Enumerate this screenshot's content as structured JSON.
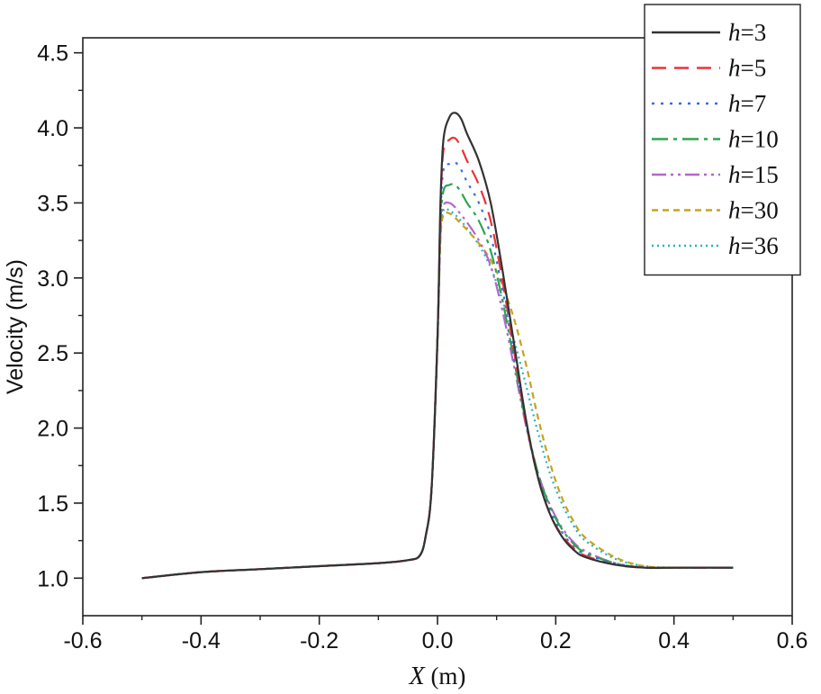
{
  "chart_data": {
    "type": "line",
    "title": "",
    "xlabel_var": "X",
    "xlabel_unit": " (m)",
    "ylabel": "Velocity (m/s)",
    "xlim": [
      -0.6,
      0.6
    ],
    "ylim": [
      0.75,
      4.6
    ],
    "x_ticks": [
      -0.6,
      -0.4,
      -0.2,
      0.0,
      0.2,
      0.4,
      0.6
    ],
    "x_tick_labels": [
      "-0.6",
      "-0.4",
      "-0.2",
      "0.0",
      "0.2",
      "0.4",
      "0.6"
    ],
    "y_ticks": [
      1.0,
      1.5,
      2.0,
      2.5,
      3.0,
      3.5,
      4.0,
      4.5
    ],
    "y_tick_labels": [
      "1.0",
      "1.5",
      "2.0",
      "2.5",
      "3.0",
      "3.5",
      "4.0",
      "4.5"
    ],
    "grid": false,
    "legend_position": "top-right",
    "series": [
      {
        "name": "h=3",
        "name_var": "h",
        "name_val": "=3",
        "color": "#333333",
        "dash": "",
        "x": [
          -0.5,
          -0.4,
          -0.3,
          -0.2,
          -0.1,
          -0.05,
          -0.03,
          -0.02,
          -0.01,
          0.0,
          0.005,
          0.01,
          0.02,
          0.03,
          0.04,
          0.05,
          0.07,
          0.09,
          0.11,
          0.13,
          0.15,
          0.17,
          0.19,
          0.21,
          0.23,
          0.25,
          0.3,
          0.35,
          0.4,
          0.45,
          0.5
        ],
        "values": [
          1.0,
          1.04,
          1.06,
          1.08,
          1.1,
          1.12,
          1.15,
          1.28,
          1.6,
          2.6,
          3.5,
          3.92,
          4.07,
          4.1,
          4.06,
          3.96,
          3.78,
          3.5,
          3.05,
          2.55,
          2.05,
          1.67,
          1.43,
          1.28,
          1.19,
          1.14,
          1.09,
          1.07,
          1.07,
          1.07,
          1.07
        ]
      },
      {
        "name": "h=5",
        "name_var": "h",
        "name_val": "=5",
        "color": "#e8333a",
        "dash": "16,9",
        "x": [
          -0.5,
          -0.4,
          -0.3,
          -0.2,
          -0.1,
          -0.05,
          -0.03,
          -0.02,
          -0.01,
          0.0,
          0.005,
          0.01,
          0.02,
          0.03,
          0.04,
          0.05,
          0.07,
          0.09,
          0.11,
          0.13,
          0.15,
          0.17,
          0.19,
          0.21,
          0.23,
          0.25,
          0.3,
          0.35,
          0.4,
          0.45,
          0.5
        ],
        "values": [
          1.0,
          1.04,
          1.06,
          1.08,
          1.1,
          1.12,
          1.15,
          1.28,
          1.6,
          2.6,
          3.45,
          3.85,
          3.92,
          3.93,
          3.87,
          3.78,
          3.62,
          3.38,
          2.98,
          2.5,
          2.03,
          1.67,
          1.43,
          1.29,
          1.2,
          1.15,
          1.09,
          1.07,
          1.07,
          1.07,
          1.07
        ]
      },
      {
        "name": "h=7",
        "name_var": "h",
        "name_val": "=7",
        "color": "#3a6fd8",
        "dash": "3,7",
        "x": [
          -0.5,
          -0.4,
          -0.3,
          -0.2,
          -0.1,
          -0.05,
          -0.03,
          -0.02,
          -0.01,
          0.0,
          0.005,
          0.01,
          0.02,
          0.03,
          0.04,
          0.05,
          0.07,
          0.09,
          0.11,
          0.13,
          0.15,
          0.17,
          0.19,
          0.21,
          0.23,
          0.25,
          0.3,
          0.35,
          0.4,
          0.45,
          0.5
        ],
        "values": [
          1.0,
          1.04,
          1.06,
          1.08,
          1.1,
          1.12,
          1.15,
          1.28,
          1.6,
          2.6,
          3.4,
          3.72,
          3.76,
          3.77,
          3.72,
          3.64,
          3.5,
          3.28,
          2.92,
          2.47,
          2.02,
          1.68,
          1.45,
          1.31,
          1.21,
          1.16,
          1.1,
          1.07,
          1.07,
          1.07,
          1.07
        ]
      },
      {
        "name": "h=10",
        "name_var": "h",
        "name_val": "=10",
        "color": "#2ea44f",
        "dash": "18,6,4,6",
        "x": [
          -0.5,
          -0.4,
          -0.3,
          -0.2,
          -0.1,
          -0.05,
          -0.03,
          -0.02,
          -0.01,
          0.0,
          0.005,
          0.01,
          0.02,
          0.03,
          0.04,
          0.05,
          0.07,
          0.09,
          0.11,
          0.13,
          0.15,
          0.17,
          0.19,
          0.21,
          0.23,
          0.25,
          0.3,
          0.35,
          0.4,
          0.45,
          0.5
        ],
        "values": [
          1.0,
          1.04,
          1.06,
          1.08,
          1.1,
          1.12,
          1.15,
          1.28,
          1.6,
          2.6,
          3.35,
          3.58,
          3.62,
          3.62,
          3.57,
          3.5,
          3.38,
          3.18,
          2.85,
          2.44,
          2.03,
          1.7,
          1.48,
          1.33,
          1.23,
          1.17,
          1.1,
          1.07,
          1.07,
          1.07,
          1.07
        ]
      },
      {
        "name": "h=15",
        "name_var": "h",
        "name_val": "=15",
        "color": "#b366cc",
        "dash": "16,5,3,5,3,5",
        "x": [
          -0.5,
          -0.4,
          -0.3,
          -0.2,
          -0.1,
          -0.05,
          -0.03,
          -0.02,
          -0.01,
          0.0,
          0.005,
          0.01,
          0.02,
          0.03,
          0.04,
          0.05,
          0.07,
          0.09,
          0.11,
          0.13,
          0.15,
          0.17,
          0.19,
          0.21,
          0.23,
          0.25,
          0.3,
          0.35,
          0.4,
          0.45,
          0.5
        ],
        "values": [
          1.0,
          1.04,
          1.06,
          1.08,
          1.1,
          1.12,
          1.15,
          1.28,
          1.6,
          2.6,
          3.3,
          3.48,
          3.5,
          3.47,
          3.42,
          3.37,
          3.25,
          3.08,
          2.78,
          2.4,
          2.01,
          1.7,
          1.49,
          1.34,
          1.24,
          1.18,
          1.1,
          1.07,
          1.07,
          1.07,
          1.07
        ]
      },
      {
        "name": "h=30",
        "name_var": "h",
        "name_val": "=30",
        "color": "#c9a21c",
        "dash": "7,5",
        "x": [
          -0.5,
          -0.4,
          -0.3,
          -0.2,
          -0.1,
          -0.05,
          -0.03,
          -0.02,
          -0.01,
          0.0,
          0.005,
          0.01,
          0.02,
          0.03,
          0.04,
          0.05,
          0.07,
          0.09,
          0.11,
          0.13,
          0.15,
          0.17,
          0.19,
          0.21,
          0.23,
          0.25,
          0.3,
          0.35,
          0.4,
          0.45,
          0.5
        ],
        "values": [
          1.0,
          1.04,
          1.06,
          1.08,
          1.1,
          1.12,
          1.15,
          1.28,
          1.6,
          2.6,
          3.25,
          3.42,
          3.43,
          3.4,
          3.36,
          3.32,
          3.23,
          3.12,
          2.95,
          2.72,
          2.42,
          2.07,
          1.77,
          1.54,
          1.38,
          1.27,
          1.14,
          1.08,
          1.07,
          1.07,
          1.07
        ]
      },
      {
        "name": "h=36",
        "name_var": "h",
        "name_val": "=36",
        "color": "#22b3c6",
        "dash": "2,4",
        "x": [
          -0.5,
          -0.4,
          -0.3,
          -0.2,
          -0.1,
          -0.05,
          -0.03,
          -0.02,
          -0.01,
          0.0,
          0.005,
          0.01,
          0.02,
          0.03,
          0.04,
          0.05,
          0.07,
          0.09,
          0.11,
          0.13,
          0.15,
          0.17,
          0.19,
          0.21,
          0.23,
          0.25,
          0.3,
          0.35,
          0.4,
          0.45,
          0.5
        ],
        "values": [
          1.0,
          1.04,
          1.06,
          1.08,
          1.1,
          1.12,
          1.15,
          1.28,
          1.6,
          2.6,
          3.28,
          3.45,
          3.45,
          3.42,
          3.38,
          3.33,
          3.22,
          3.07,
          2.85,
          2.58,
          2.28,
          1.97,
          1.7,
          1.5,
          1.35,
          1.25,
          1.13,
          1.08,
          1.07,
          1.07,
          1.07
        ]
      }
    ]
  }
}
